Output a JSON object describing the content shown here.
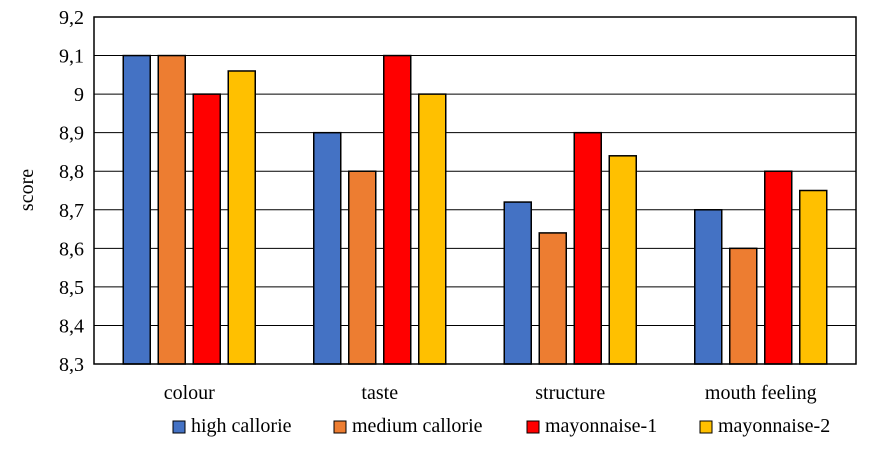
{
  "chart_data": {
    "type": "bar",
    "title": "",
    "xlabel": "",
    "ylabel": "score",
    "ylim": [
      8.3,
      9.2
    ],
    "yticks": [
      "8,3",
      "8,4",
      "8,5",
      "8,6",
      "8,7",
      "8,8",
      "8,9",
      "9",
      "9,1",
      "9,2"
    ],
    "categories": [
      "colour",
      "taste",
      "structure",
      "mouth feeling"
    ],
    "grid": true,
    "legend_position": "bottom-right",
    "series": [
      {
        "name": "high callorie",
        "color": "#4472C4",
        "values": [
          9.1,
          8.9,
          8.72,
          8.7
        ]
      },
      {
        "name": "medium callorie",
        "color": "#ED7D31",
        "values": [
          9.1,
          8.8,
          8.64,
          8.6
        ]
      },
      {
        "name": "mayonnaise-1",
        "color": "#FF0000",
        "values": [
          9.0,
          9.1,
          8.9,
          8.8
        ]
      },
      {
        "name": "mayonnaise-2",
        "color": "#FFC000",
        "values": [
          9.06,
          9.0,
          8.84,
          8.75
        ]
      }
    ]
  }
}
